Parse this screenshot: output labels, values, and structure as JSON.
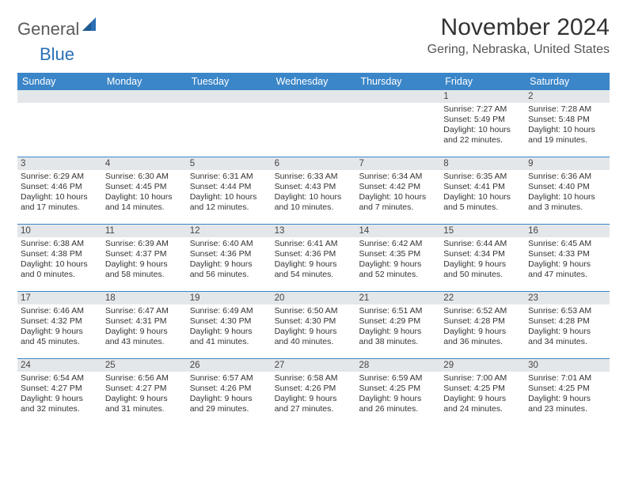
{
  "brand": {
    "word1": "General",
    "word2": "Blue",
    "text_color": "#5a5a5a",
    "accent_color": "#2a6fb5"
  },
  "title": "November 2024",
  "location": "Gering, Nebraska, United States",
  "header_bg": "#3b86c8",
  "daynum_bg": "#e4e7ea",
  "background": "#ffffff",
  "dow": [
    "Sunday",
    "Monday",
    "Tuesday",
    "Wednesday",
    "Thursday",
    "Friday",
    "Saturday"
  ],
  "weeks": [
    [
      {
        "n": "",
        "sr": "",
        "ss": "",
        "dl": ""
      },
      {
        "n": "",
        "sr": "",
        "ss": "",
        "dl": ""
      },
      {
        "n": "",
        "sr": "",
        "ss": "",
        "dl": ""
      },
      {
        "n": "",
        "sr": "",
        "ss": "",
        "dl": ""
      },
      {
        "n": "",
        "sr": "",
        "ss": "",
        "dl": ""
      },
      {
        "n": "1",
        "sr": "Sunrise: 7:27 AM",
        "ss": "Sunset: 5:49 PM",
        "dl": "Daylight: 10 hours and 22 minutes."
      },
      {
        "n": "2",
        "sr": "Sunrise: 7:28 AM",
        "ss": "Sunset: 5:48 PM",
        "dl": "Daylight: 10 hours and 19 minutes."
      }
    ],
    [
      {
        "n": "3",
        "sr": "Sunrise: 6:29 AM",
        "ss": "Sunset: 4:46 PM",
        "dl": "Daylight: 10 hours and 17 minutes."
      },
      {
        "n": "4",
        "sr": "Sunrise: 6:30 AM",
        "ss": "Sunset: 4:45 PM",
        "dl": "Daylight: 10 hours and 14 minutes."
      },
      {
        "n": "5",
        "sr": "Sunrise: 6:31 AM",
        "ss": "Sunset: 4:44 PM",
        "dl": "Daylight: 10 hours and 12 minutes."
      },
      {
        "n": "6",
        "sr": "Sunrise: 6:33 AM",
        "ss": "Sunset: 4:43 PM",
        "dl": "Daylight: 10 hours and 10 minutes."
      },
      {
        "n": "7",
        "sr": "Sunrise: 6:34 AM",
        "ss": "Sunset: 4:42 PM",
        "dl": "Daylight: 10 hours and 7 minutes."
      },
      {
        "n": "8",
        "sr": "Sunrise: 6:35 AM",
        "ss": "Sunset: 4:41 PM",
        "dl": "Daylight: 10 hours and 5 minutes."
      },
      {
        "n": "9",
        "sr": "Sunrise: 6:36 AM",
        "ss": "Sunset: 4:40 PM",
        "dl": "Daylight: 10 hours and 3 minutes."
      }
    ],
    [
      {
        "n": "10",
        "sr": "Sunrise: 6:38 AM",
        "ss": "Sunset: 4:38 PM",
        "dl": "Daylight: 10 hours and 0 minutes."
      },
      {
        "n": "11",
        "sr": "Sunrise: 6:39 AM",
        "ss": "Sunset: 4:37 PM",
        "dl": "Daylight: 9 hours and 58 minutes."
      },
      {
        "n": "12",
        "sr": "Sunrise: 6:40 AM",
        "ss": "Sunset: 4:36 PM",
        "dl": "Daylight: 9 hours and 56 minutes."
      },
      {
        "n": "13",
        "sr": "Sunrise: 6:41 AM",
        "ss": "Sunset: 4:36 PM",
        "dl": "Daylight: 9 hours and 54 minutes."
      },
      {
        "n": "14",
        "sr": "Sunrise: 6:42 AM",
        "ss": "Sunset: 4:35 PM",
        "dl": "Daylight: 9 hours and 52 minutes."
      },
      {
        "n": "15",
        "sr": "Sunrise: 6:44 AM",
        "ss": "Sunset: 4:34 PM",
        "dl": "Daylight: 9 hours and 50 minutes."
      },
      {
        "n": "16",
        "sr": "Sunrise: 6:45 AM",
        "ss": "Sunset: 4:33 PM",
        "dl": "Daylight: 9 hours and 47 minutes."
      }
    ],
    [
      {
        "n": "17",
        "sr": "Sunrise: 6:46 AM",
        "ss": "Sunset: 4:32 PM",
        "dl": "Daylight: 9 hours and 45 minutes."
      },
      {
        "n": "18",
        "sr": "Sunrise: 6:47 AM",
        "ss": "Sunset: 4:31 PM",
        "dl": "Daylight: 9 hours and 43 minutes."
      },
      {
        "n": "19",
        "sr": "Sunrise: 6:49 AM",
        "ss": "Sunset: 4:30 PM",
        "dl": "Daylight: 9 hours and 41 minutes."
      },
      {
        "n": "20",
        "sr": "Sunrise: 6:50 AM",
        "ss": "Sunset: 4:30 PM",
        "dl": "Daylight: 9 hours and 40 minutes."
      },
      {
        "n": "21",
        "sr": "Sunrise: 6:51 AM",
        "ss": "Sunset: 4:29 PM",
        "dl": "Daylight: 9 hours and 38 minutes."
      },
      {
        "n": "22",
        "sr": "Sunrise: 6:52 AM",
        "ss": "Sunset: 4:28 PM",
        "dl": "Daylight: 9 hours and 36 minutes."
      },
      {
        "n": "23",
        "sr": "Sunrise: 6:53 AM",
        "ss": "Sunset: 4:28 PM",
        "dl": "Daylight: 9 hours and 34 minutes."
      }
    ],
    [
      {
        "n": "24",
        "sr": "Sunrise: 6:54 AM",
        "ss": "Sunset: 4:27 PM",
        "dl": "Daylight: 9 hours and 32 minutes."
      },
      {
        "n": "25",
        "sr": "Sunrise: 6:56 AM",
        "ss": "Sunset: 4:27 PM",
        "dl": "Daylight: 9 hours and 31 minutes."
      },
      {
        "n": "26",
        "sr": "Sunrise: 6:57 AM",
        "ss": "Sunset: 4:26 PM",
        "dl": "Daylight: 9 hours and 29 minutes."
      },
      {
        "n": "27",
        "sr": "Sunrise: 6:58 AM",
        "ss": "Sunset: 4:26 PM",
        "dl": "Daylight: 9 hours and 27 minutes."
      },
      {
        "n": "28",
        "sr": "Sunrise: 6:59 AM",
        "ss": "Sunset: 4:25 PM",
        "dl": "Daylight: 9 hours and 26 minutes."
      },
      {
        "n": "29",
        "sr": "Sunrise: 7:00 AM",
        "ss": "Sunset: 4:25 PM",
        "dl": "Daylight: 9 hours and 24 minutes."
      },
      {
        "n": "30",
        "sr": "Sunrise: 7:01 AM",
        "ss": "Sunset: 4:25 PM",
        "dl": "Daylight: 9 hours and 23 minutes."
      }
    ]
  ]
}
